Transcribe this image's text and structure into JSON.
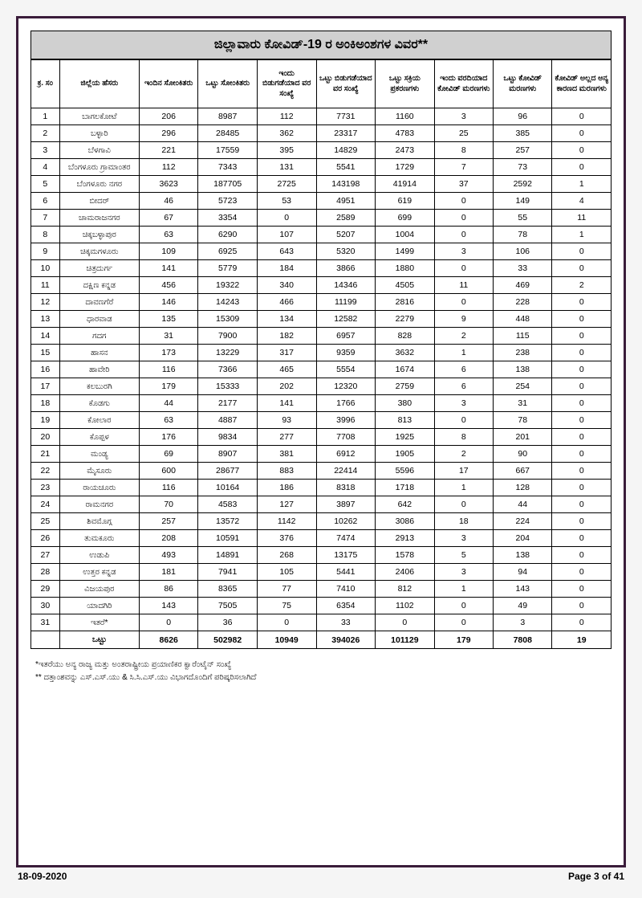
{
  "title": "ಜಿಲ್ಲಾವಾರು ಕೋವಿಡ್-19 ರ ಅಂಕಿಅಂಶಗಳ ವಿವರ**",
  "headers": {
    "sl": "ಕ್ರ. ಸಂ",
    "district": "ಜಿಲ್ಲೆಯ ಹೆಸರು",
    "today_positive": "ಇಂದಿನ ಸೋಂಕಿತರು",
    "total_positive": "ಒಟ್ಟು ಸೋಂಕಿತರು",
    "today_discharged": "ಇಂದು ಬಿಡುಗಡೆಯಾದ ವರ ಸಂಖ್ಯೆ",
    "total_discharged": "ಒಟ್ಟು ಬಿಡುಗಡೆಯಾದ ವರ ಸಂಖ್ಯೆ",
    "active_cases": "ಒಟ್ಟು ಸಕ್ರಿಯ ಪ್ರಕರಣಗಳು",
    "today_deaths": "ಇಂದು ವರದಿಯಾದ ಕೋವಿಡ್ ಮರಣಗಳು",
    "total_deaths": "ಒಟ್ಟು ಕೋವಿಡ್ ಮರಣಗಳು",
    "non_covid_deaths": "ಕೋವಿಡ್ ಅಲ್ಲದ ಅನ್ಯ ಕಾರಣದ ಮರಣಗಳು"
  },
  "rows": [
    {
      "sl": "1",
      "d": "ಬಾಗಲಕೋಟೆ",
      "c": [
        "206",
        "8987",
        "112",
        "7731",
        "1160",
        "3",
        "96",
        "0"
      ]
    },
    {
      "sl": "2",
      "d": "ಬಳ್ಳಾರಿ",
      "c": [
        "296",
        "28485",
        "362",
        "23317",
        "4783",
        "25",
        "385",
        "0"
      ]
    },
    {
      "sl": "3",
      "d": "ಬೆಳಗಾವಿ",
      "c": [
        "221",
        "17559",
        "395",
        "14829",
        "2473",
        "8",
        "257",
        "0"
      ]
    },
    {
      "sl": "4",
      "d": "ಬೆಂಗಳೂರು ಗ್ರಾಮಾಂತರ",
      "c": [
        "112",
        "7343",
        "131",
        "5541",
        "1729",
        "7",
        "73",
        "0"
      ]
    },
    {
      "sl": "5",
      "d": "ಬೆಂಗಳೂರು ನಗರ",
      "c": [
        "3623",
        "187705",
        "2725",
        "143198",
        "41914",
        "37",
        "2592",
        "1"
      ]
    },
    {
      "sl": "6",
      "d": "ಬೀದರ್",
      "c": [
        "46",
        "5723",
        "53",
        "4951",
        "619",
        "0",
        "149",
        "4"
      ]
    },
    {
      "sl": "7",
      "d": "ಚಾಮರಾಜನಗರ",
      "c": [
        "67",
        "3354",
        "0",
        "2589",
        "699",
        "0",
        "55",
        "11"
      ]
    },
    {
      "sl": "8",
      "d": "ಚಿಕ್ಕಬಳ್ಳಾಪುರ",
      "c": [
        "63",
        "6290",
        "107",
        "5207",
        "1004",
        "0",
        "78",
        "1"
      ]
    },
    {
      "sl": "9",
      "d": "ಚಿಕ್ಕಮಗಳೂರು",
      "c": [
        "109",
        "6925",
        "643",
        "5320",
        "1499",
        "3",
        "106",
        "0"
      ]
    },
    {
      "sl": "10",
      "d": "ಚಿತ್ರದುರ್ಗ",
      "c": [
        "141",
        "5779",
        "184",
        "3866",
        "1880",
        "0",
        "33",
        "0"
      ]
    },
    {
      "sl": "11",
      "d": "ದಕ್ಷಿಣ ಕನ್ನಡ",
      "c": [
        "456",
        "19322",
        "340",
        "14346",
        "4505",
        "11",
        "469",
        "2"
      ]
    },
    {
      "sl": "12",
      "d": "ದಾವಣಗೆರೆ",
      "c": [
        "146",
        "14243",
        "466",
        "11199",
        "2816",
        "0",
        "228",
        "0"
      ]
    },
    {
      "sl": "13",
      "d": "ಧಾರವಾಡ",
      "c": [
        "135",
        "15309",
        "134",
        "12582",
        "2279",
        "9",
        "448",
        "0"
      ]
    },
    {
      "sl": "14",
      "d": "ಗದಗ",
      "c": [
        "31",
        "7900",
        "182",
        "6957",
        "828",
        "2",
        "115",
        "0"
      ]
    },
    {
      "sl": "15",
      "d": "ಹಾಸನ",
      "c": [
        "173",
        "13229",
        "317",
        "9359",
        "3632",
        "1",
        "238",
        "0"
      ]
    },
    {
      "sl": "16",
      "d": "ಹಾವೇರಿ",
      "c": [
        "116",
        "7366",
        "465",
        "5554",
        "1674",
        "6",
        "138",
        "0"
      ]
    },
    {
      "sl": "17",
      "d": "ಕಲಬುರಗಿ",
      "c": [
        "179",
        "15333",
        "202",
        "12320",
        "2759",
        "6",
        "254",
        "0"
      ]
    },
    {
      "sl": "18",
      "d": "ಕೊಡಗು",
      "c": [
        "44",
        "2177",
        "141",
        "1766",
        "380",
        "3",
        "31",
        "0"
      ]
    },
    {
      "sl": "19",
      "d": "ಕೋಲಾರ",
      "c": [
        "63",
        "4887",
        "93",
        "3996",
        "813",
        "0",
        "78",
        "0"
      ]
    },
    {
      "sl": "20",
      "d": "ಕೊಪ್ಪಳ",
      "c": [
        "176",
        "9834",
        "277",
        "7708",
        "1925",
        "8",
        "201",
        "0"
      ]
    },
    {
      "sl": "21",
      "d": "ಮಂಡ್ಯ",
      "c": [
        "69",
        "8907",
        "381",
        "6912",
        "1905",
        "2",
        "90",
        "0"
      ]
    },
    {
      "sl": "22",
      "d": "ಮೈಸೂರು",
      "c": [
        "600",
        "28677",
        "883",
        "22414",
        "5596",
        "17",
        "667",
        "0"
      ]
    },
    {
      "sl": "23",
      "d": "ರಾಯಚೂರು",
      "c": [
        "116",
        "10164",
        "186",
        "8318",
        "1718",
        "1",
        "128",
        "0"
      ]
    },
    {
      "sl": "24",
      "d": "ರಾಮನಗರ",
      "c": [
        "70",
        "4583",
        "127",
        "3897",
        "642",
        "0",
        "44",
        "0"
      ]
    },
    {
      "sl": "25",
      "d": "ಶಿವಮೊಗ್ಗ",
      "c": [
        "257",
        "13572",
        "1142",
        "10262",
        "3086",
        "18",
        "224",
        "0"
      ]
    },
    {
      "sl": "26",
      "d": "ತುಮಕೂರು",
      "c": [
        "208",
        "10591",
        "376",
        "7474",
        "2913",
        "3",
        "204",
        "0"
      ]
    },
    {
      "sl": "27",
      "d": "ಉಡುಪಿ",
      "c": [
        "493",
        "14891",
        "268",
        "13175",
        "1578",
        "5",
        "138",
        "0"
      ]
    },
    {
      "sl": "28",
      "d": "ಉತ್ತರ ಕನ್ನಡ",
      "c": [
        "181",
        "7941",
        "105",
        "5441",
        "2406",
        "3",
        "94",
        "0"
      ]
    },
    {
      "sl": "29",
      "d": "ವಿಜಯಪುರ",
      "c": [
        "86",
        "8365",
        "77",
        "7410",
        "812",
        "1",
        "143",
        "0"
      ]
    },
    {
      "sl": "30",
      "d": "ಯಾದಗಿರಿ",
      "c": [
        "143",
        "7505",
        "75",
        "6354",
        "1102",
        "0",
        "49",
        "0"
      ]
    },
    {
      "sl": "31",
      "d": "ಇತರೆ*",
      "c": [
        "0",
        "36",
        "0",
        "33",
        "0",
        "0",
        "3",
        "0"
      ]
    }
  ],
  "total": {
    "label": "ಒಟ್ಟು",
    "c": [
      "8626",
      "502982",
      "10949",
      "394026",
      "101129",
      "179",
      "7808",
      "19"
    ]
  },
  "footnotes": [
    "*ಇತರೆಯು ಅನ್ಯ ರಾಜ್ಯ ಮತ್ತು ಅಂತರಾಷ್ಟ್ರೀಯ ಪ್ರಯಾಣಿಕರ ಕ್ವಾರೆಂಟೈನ್ ಸಂಖ್ಯೆ",
    "** ದತ್ತಾಂಶವನ್ನು ಎಸ್.ಎಸ್.ಯು & ಸಿ.ಸಿ.ಎಸ್.ಯು ವಿಭಾಗದೊಂದಿಗೆ ಪರಿಷ್ಕರಿಸಲಾಗಿದೆ"
  ],
  "footer": {
    "date": "18-09-2020",
    "page": "Page 3 of 41"
  }
}
